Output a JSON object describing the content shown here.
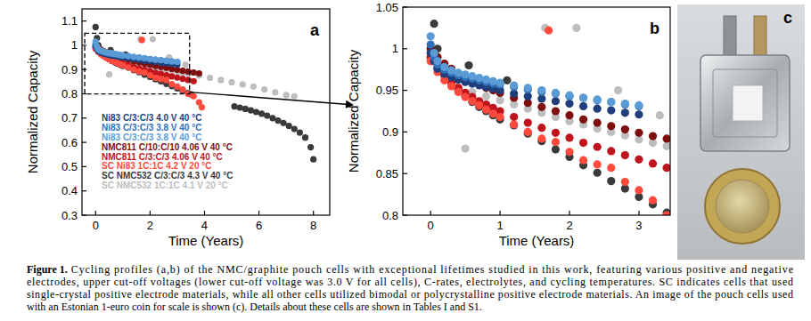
{
  "chart_data": [
    {
      "type": "scatter",
      "x_label": "Time (Years)",
      "y_label": "Normalized Capacity",
      "xlim": [
        -0.5,
        8.6
      ],
      "ylim": [
        0.3,
        1.15
      ],
      "xticks": [
        0,
        2,
        4,
        6,
        8
      ],
      "yticks": [
        0.3,
        0.4,
        0.5,
        0.6,
        0.7,
        0.8,
        0.9,
        1,
        1.1
      ],
      "grid": false,
      "legend": "lower left",
      "marker": "circle",
      "series": [
        {
          "name": "Ni83 C/3:C/3 4.0 V 40 °C",
          "color": "#1f3e7a",
          "x": [
            0,
            0.05,
            0.1,
            0.2,
            0.3,
            0.4,
            0.5,
            0.6,
            0.7,
            0.8,
            0.9,
            1.0,
            1.2,
            1.4,
            1.6,
            1.8,
            2.0,
            2.2,
            2.4,
            2.6,
            2.8,
            3.0
          ],
          "values": [
            0.995,
            0.985,
            0.976,
            0.97,
            0.966,
            0.963,
            0.96,
            0.958,
            0.956,
            0.954,
            0.952,
            0.95,
            0.946,
            0.943,
            0.94,
            0.937,
            0.934,
            0.931,
            0.928,
            0.926,
            0.923,
            0.921
          ]
        },
        {
          "name": "Ni83 C/3:C/3 3.8 V 40 °C",
          "color": "#2e6fb7",
          "x": [
            0,
            0.05,
            0.1,
            0.2,
            0.3,
            0.4,
            0.5,
            0.6,
            0.7,
            0.8,
            0.9,
            1.0,
            1.2,
            1.4,
            1.6,
            1.8,
            2.0,
            2.2,
            2.4,
            2.6,
            2.8,
            3.0
          ],
          "values": [
            1.005,
            0.99,
            0.981,
            0.975,
            0.971,
            0.968,
            0.966,
            0.964,
            0.962,
            0.96,
            0.958,
            0.957,
            0.954,
            0.951,
            0.948,
            0.946,
            0.943,
            0.941,
            0.938,
            0.936,
            0.933,
            0.931
          ]
        },
        {
          "name": "Ni83 C/3:C/3 3.8 V 40 °C",
          "color": "#5b9bd5",
          "x": [
            0,
            0.05,
            0.1,
            0.2,
            0.3,
            0.4,
            0.5,
            0.6,
            0.7,
            0.8,
            0.9,
            1.0,
            1.2,
            1.4,
            1.6,
            1.8,
            2.0,
            2.2,
            2.4,
            2.6,
            2.8,
            3.0
          ],
          "values": [
            1.015,
            0.995,
            0.985,
            0.978,
            0.974,
            0.971,
            0.969,
            0.967,
            0.965,
            0.963,
            0.961,
            0.959,
            0.956,
            0.953,
            0.95,
            0.947,
            0.944,
            0.941,
            0.939,
            0.936,
            0.934,
            0.932
          ]
        },
        {
          "name": "NMC811 C/10:C/10 4.06 V 40 °C",
          "color": "#7f0f0f",
          "x": [
            0,
            0.1,
            0.2,
            0.3,
            0.4,
            0.5,
            0.6,
            0.7,
            0.8,
            0.9,
            1.0,
            1.2,
            1.4,
            1.6,
            1.8,
            2.0,
            2.2,
            2.4,
            2.6,
            2.8,
            3.0,
            3.2,
            3.4,
            3.6,
            3.8
          ],
          "values": [
            1.0,
            0.99,
            0.982,
            0.976,
            0.97,
            0.965,
            0.961,
            0.957,
            0.953,
            0.95,
            0.947,
            0.941,
            0.935,
            0.93,
            0.925,
            0.92,
            0.915,
            0.911,
            0.907,
            0.903,
            0.899,
            0.895,
            0.892,
            0.888,
            0.884
          ]
        },
        {
          "name": "NMC811 C/3:C/3 4.06 V 40 °C",
          "color": "#c0141c",
          "x": [
            0,
            0.1,
            0.2,
            0.3,
            0.4,
            0.5,
            0.6,
            0.7,
            0.8,
            0.9,
            1.0,
            1.2,
            1.4,
            1.6,
            1.8,
            2.0,
            2.2,
            2.4,
            2.6,
            2.8,
            3.0,
            3.2,
            3.4,
            3.6
          ],
          "values": [
            0.99,
            0.978,
            0.968,
            0.96,
            0.953,
            0.947,
            0.942,
            0.937,
            0.933,
            0.929,
            0.925,
            0.918,
            0.911,
            0.905,
            0.899,
            0.893,
            0.887,
            0.882,
            0.877,
            0.872,
            0.867,
            0.862,
            0.857,
            0.852
          ]
        },
        {
          "name": "SC Ni83 1C:1C 4.2 V 20 °C",
          "color": "#ff4a3d",
          "x": [
            0,
            0.1,
            0.2,
            0.3,
            0.4,
            0.5,
            0.6,
            0.7,
            0.8,
            0.9,
            1.0,
            1.2,
            1.4,
            1.6,
            1.7,
            1.8,
            2.0,
            2.2,
            2.4,
            2.6,
            2.8,
            3.0,
            3.2,
            3.4,
            3.6,
            3.8,
            3.9
          ],
          "values": [
            0.985,
            0.972,
            0.962,
            0.955,
            0.948,
            0.942,
            0.937,
            0.932,
            0.927,
            0.922,
            0.918,
            0.909,
            0.9,
            0.892,
            1.022,
            0.888,
            0.876,
            0.866,
            0.861,
            0.857,
            0.84,
            0.83,
            0.818,
            0.8,
            0.79,
            0.765,
            0.745
          ]
        },
        {
          "name": "SC NMC532 C/3:C/3 4.3 V 40 °C",
          "color": "#3a3a3a",
          "x": [
            0,
            0.05,
            0.1,
            0.2,
            0.3,
            0.4,
            0.5,
            0.55,
            0.6,
            0.7,
            0.8,
            0.9,
            1.0,
            1.1,
            1.2,
            1.4,
            1.6,
            1.8,
            2.0,
            2.2,
            2.4,
            2.6,
            2.8,
            3.0,
            3.2,
            3.4,
            3.5,
            5.1,
            5.3,
            5.5,
            5.7,
            5.9,
            6.1,
            6.3,
            6.5,
            6.7,
            6.9,
            7.1,
            7.3,
            7.5,
            7.7,
            7.9,
            8.0
          ],
          "values": [
            1.075,
            1.03,
            1.0,
            0.975,
            0.96,
            0.95,
            0.943,
            0.98,
            0.936,
            0.93,
            0.925,
            0.92,
            0.915,
            0.962,
            0.908,
            0.898,
            0.889,
            0.879,
            0.87,
            0.86,
            0.851,
            0.841,
            0.832,
            0.822,
            0.813,
            0.803,
            0.798,
            0.748,
            0.743,
            0.738,
            0.732,
            0.725,
            0.718,
            0.71,
            0.7,
            0.69,
            0.68,
            0.668,
            0.655,
            0.64,
            0.62,
            0.58,
            0.53
          ]
        },
        {
          "name": "SC NMC532 1C:1C 4.1 V 20 °C",
          "color": "#bdbdbd",
          "x": [
            0,
            0.1,
            0.2,
            0.3,
            0.35,
            0.5,
            0.6,
            0.8,
            1.0,
            1.2,
            1.4,
            1.6,
            1.65,
            1.8,
            2.0,
            2.1,
            2.2,
            2.4,
            2.6,
            2.7,
            2.8,
            3.0,
            3.2,
            3.3,
            3.4,
            3.8,
            4.2,
            4.6,
            5.0,
            5.4,
            5.8,
            6.2,
            6.6,
            7.0,
            7.3
          ],
          "values": [
            0.99,
            0.975,
            0.965,
            0.958,
            0.955,
            0.88,
            0.948,
            0.943,
            0.938,
            0.933,
            0.928,
            0.923,
            1.025,
            0.918,
            0.913,
            1.025,
            0.909,
            0.904,
            0.9,
            0.95,
            0.896,
            0.891,
            0.887,
            0.92,
            0.883,
            0.875,
            0.866,
            0.857,
            0.848,
            0.839,
            0.83,
            0.818,
            0.806,
            0.795,
            0.79
          ]
        }
      ]
    },
    {
      "type": "scatter",
      "x_label": "Time (Years)",
      "y_label": "Normalized Capacity",
      "xlim": [
        -0.4,
        3.45
      ],
      "ylim": [
        0.8,
        1.05
      ],
      "xticks": [
        0,
        1,
        2,
        3
      ],
      "yticks": [
        0.8,
        0.85,
        0.9,
        0.95,
        1,
        1.05
      ],
      "grid": false,
      "marker": "circle"
    }
  ],
  "panel_labels": [
    "a",
    "b",
    "c"
  ],
  "caption": {
    "label": "Figure 1.",
    "lines": [
      "Cycling profiles (a,b) of the NMC/graphite pouch cells with exceptional lifetimes studied in this work, featuring various positive and negative",
      "electrodes, upper cut-off voltages (lower cut-off voltage was 3.0 V for all cells), C-rates, electrolytes, and cycling temperatures. SC indicates cells that used",
      "single-crystal positive electrode materials, while all other cells utilized bimodal or polycrystalline positive electrode materials. An image of the pouch cells used",
      "with an Estonian 1-euro coin for scale is shown (c). Details about these cells are shown in Tables I and S1."
    ]
  }
}
